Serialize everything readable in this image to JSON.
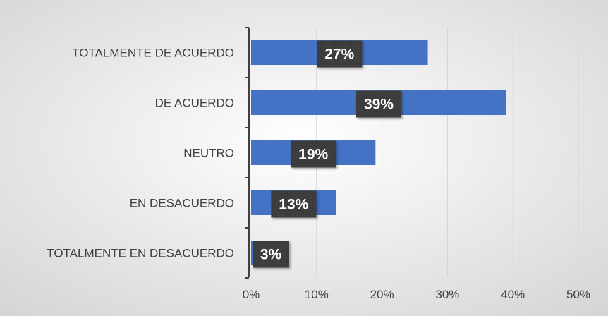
{
  "chart_data": {
    "type": "bar",
    "orientation": "horizontal",
    "categories": [
      "TOTALMENTE DE ACUERDO",
      "DE ACUERDO",
      "NEUTRO",
      "EN DESACUERDO",
      "TOTALMENTE EN DESACUERDO"
    ],
    "values": [
      27,
      39,
      19,
      13,
      3
    ],
    "data_labels": [
      "27%",
      "39%",
      "19%",
      "13%",
      "3%"
    ],
    "x_ticks": [
      "0%",
      "10%",
      "20%",
      "30%",
      "40%",
      "50%"
    ],
    "xlim": [
      0,
      50
    ],
    "title": "",
    "xlabel": "",
    "ylabel": "",
    "grid": "vertical",
    "legend": "none"
  },
  "colors": {
    "bar": "#4472C4",
    "label_box": "#3a3a3a",
    "label_text": "#ffffff",
    "grid": "#d4d4d4",
    "axis": "#404040",
    "text": "#404040",
    "bg_center": "#ffffff",
    "bg_edge": "#d4d4d4"
  }
}
